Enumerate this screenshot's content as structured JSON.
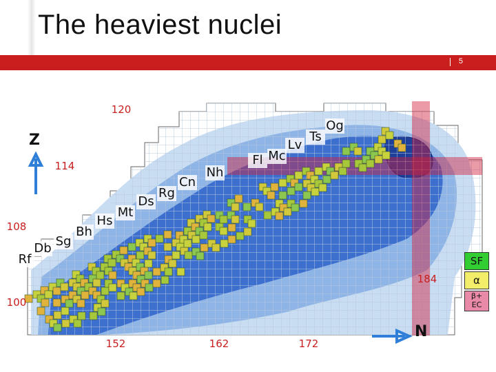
{
  "title": "The heaviest nuclei",
  "page_number": "5",
  "elements": [
    "Rf",
    "Db",
    "Sg",
    "Bh",
    "Hs",
    "Mt",
    "Ds",
    "Rg",
    "Cn",
    "Nh",
    "Fl",
    "Mc",
    "Lv",
    "Ts",
    "Og"
  ],
  "z_labels": [
    "120",
    "114",
    "108",
    "100"
  ],
  "n_labels": [
    "152",
    "162",
    "172",
    "184"
  ],
  "axis_z": "Z",
  "axis_n": "N",
  "legend": {
    "sf": "SF",
    "alpha": "α",
    "beta": "β+",
    "ec": "EC"
  },
  "colors": {
    "accent": "#c81e1e",
    "sf": "#32cd32",
    "alpha": "#f2ee6a",
    "beta": "#e88aa8"
  }
}
